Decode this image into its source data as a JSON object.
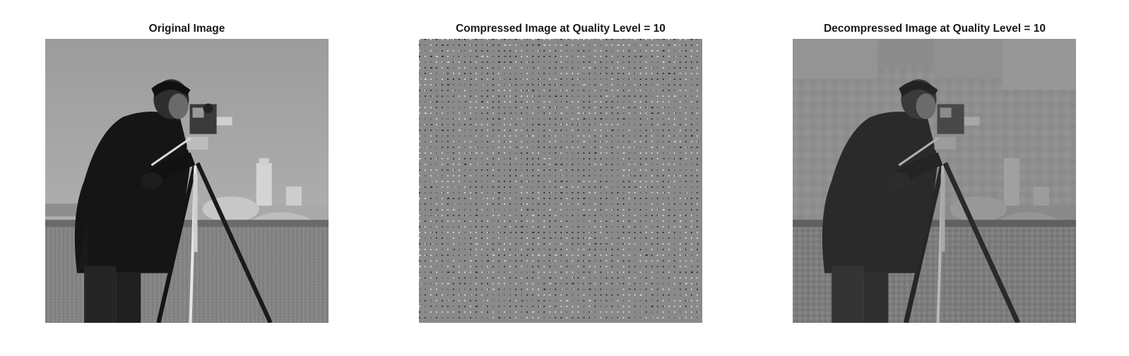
{
  "figure": {
    "panels": [
      {
        "title": "Original Image",
        "content": "photograph"
      },
      {
        "title": "Compressed Image at Quality Level = 10",
        "content": "sparse-dct-coefficients"
      },
      {
        "title": "Decompressed Image at Quality Level = 10",
        "content": "blocky-photograph"
      }
    ]
  },
  "colors": {
    "background": "#ffffff",
    "title_text": "#1a1a1a",
    "compressed_bg": "#8a8a8a"
  }
}
